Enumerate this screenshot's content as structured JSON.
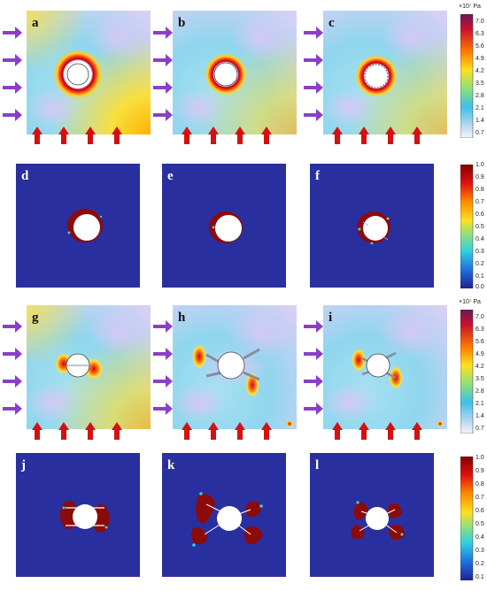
{
  "panels": [
    {
      "label": "a"
    },
    {
      "label": "b"
    },
    {
      "label": "c"
    },
    {
      "label": "d"
    },
    {
      "label": "e"
    },
    {
      "label": "f"
    },
    {
      "label": "g"
    },
    {
      "label": "h"
    },
    {
      "label": "i"
    },
    {
      "label": "j"
    },
    {
      "label": "k"
    },
    {
      "label": "l"
    }
  ],
  "stress_colorbar": {
    "unit": "×10⁷ Pa",
    "ticks": [
      "7.0",
      "6.3",
      "5.6",
      "4.9",
      "4.2",
      "3.5",
      "2.8",
      "2.1",
      "1.4",
      "0.7"
    ]
  },
  "damage_colorbar": {
    "ticks": [
      "1.0",
      "0.9",
      "0.8",
      "0.7",
      "0.6",
      "0.5",
      "0.4",
      "0.3",
      "0.2",
      "0.1",
      "0.0"
    ]
  },
  "damage_colorbar_bottom": {
    "ticks": [
      "1.0",
      "0.9",
      "0.8",
      "0.7",
      "0.6",
      "0.5",
      "0.4",
      "0.3",
      "0.2",
      "0.1"
    ]
  },
  "colors": {
    "arrow_left": "#8a3fc8",
    "arrow_up": "#d41010",
    "damage_bg": "#2a2fa0",
    "damage_red": "#8b0a0a"
  }
}
